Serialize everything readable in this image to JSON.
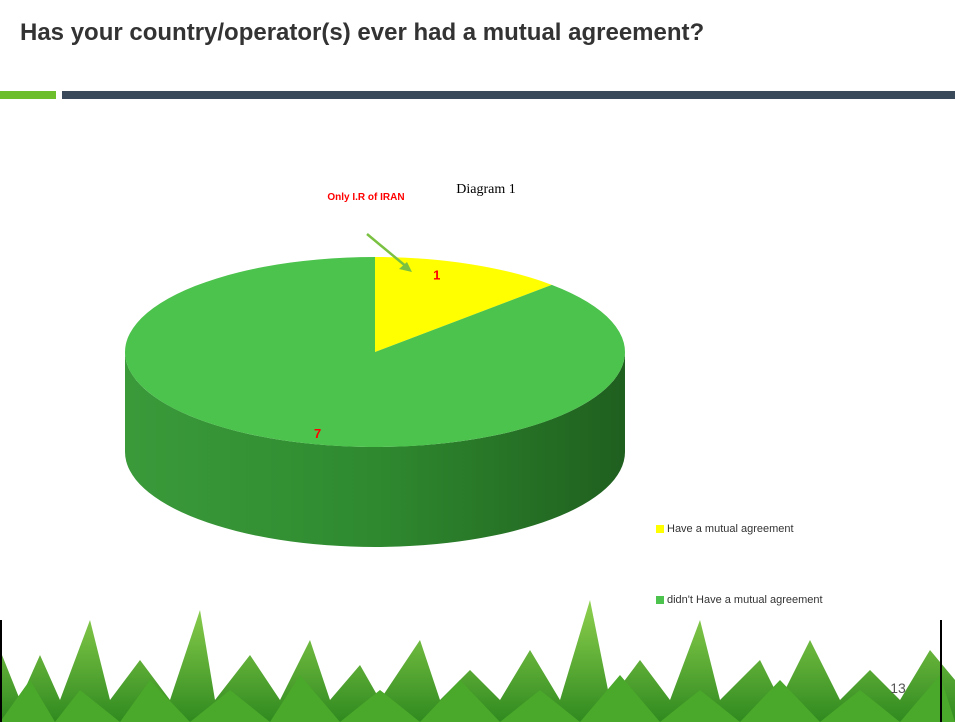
{
  "slide": {
    "title": "Has your country/operator(s) ever had a mutual agreement?",
    "page_number": 13
  },
  "chart_data": {
    "type": "pie",
    "title": "Diagram 1",
    "annotation": "Only I.R of IRAN",
    "categories": [
      "Have a mutual agreement",
      "didn't Have a mutual agreement"
    ],
    "values": [
      1,
      7
    ],
    "colors": [
      "#ffff00",
      "#4cc34c"
    ],
    "value_label_color": "#ff0000",
    "legend": "bottom-right"
  }
}
